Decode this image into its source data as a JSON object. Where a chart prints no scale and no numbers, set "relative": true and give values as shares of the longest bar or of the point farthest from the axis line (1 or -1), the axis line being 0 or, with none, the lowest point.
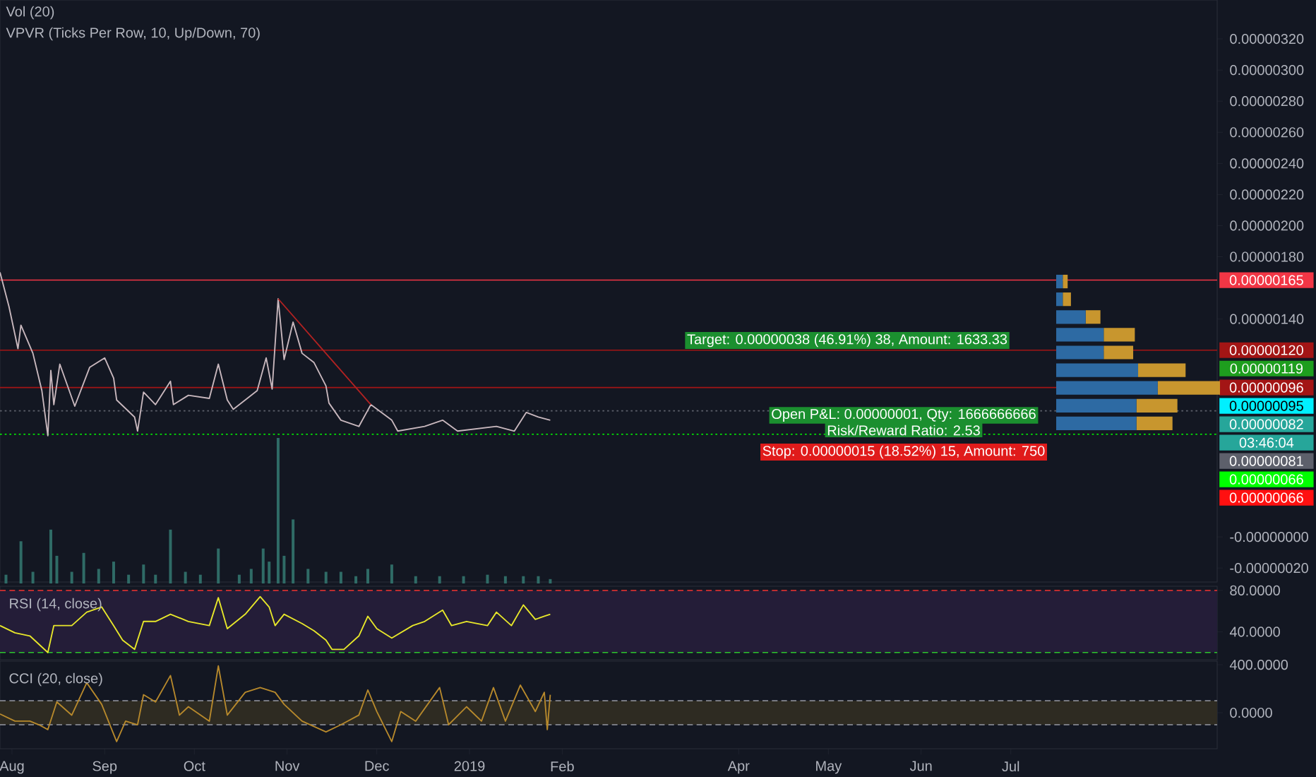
{
  "chart_data": [
    {
      "type": "line",
      "series": [
        {
          "color": "#c9b8be",
          "x": [
            "2018-07-28",
            "2018-07-31",
            "2018-08-03",
            "2018-08-04",
            "2018-08-08",
            "2018-08-11",
            "2018-08-13",
            "2018-08-14",
            "2018-08-15",
            "2018-08-17",
            "2018-08-22",
            "2018-08-27",
            "2018-09-01",
            "2018-09-04",
            "2018-09-05",
            "2018-09-11",
            "2018-09-12",
            "2018-09-14",
            "2018-09-18",
            "2018-09-23",
            "2018-09-24",
            "2018-09-29",
            "2018-10-06",
            "2018-10-09",
            "2018-10-12",
            "2018-10-14",
            "2018-10-18",
            "2018-10-22",
            "2018-10-25",
            "2018-10-27",
            "2018-10-29",
            "2018-10-31",
            "2018-11-03",
            "2018-11-06",
            "2018-11-10",
            "2018-11-14",
            "2018-11-15",
            "2018-11-19",
            "2018-11-25",
            "2018-11-29",
            "2018-12-06",
            "2018-12-08",
            "2018-12-17",
            "2018-12-23",
            "2018-12-28",
            "2019-01-10",
            "2019-01-16",
            "2019-01-20",
            "2019-01-24",
            "2019-01-28"
          ],
          "values": [
            1.7e-06,
            1.48e-06,
            1.21e-06,
            1.36e-06,
            1.18e-06,
            9.4e-07,
            6.5e-07,
            1.07e-06,
            8.5e-07,
            1.11e-06,
            8.4e-07,
            1.09e-06,
            1.15e-06,
            1.02e-06,
            8.8e-07,
            7.7e-07,
            6.8e-07,
            9.3e-07,
            8.5e-07,
            1e-06,
            8.5e-07,
            9.1e-07,
            8.9e-07,
            1.11e-06,
            8.8e-07,
            8.2e-07,
            8.8e-07,
            9.4e-07,
            1.15e-06,
            9.5e-07,
            1.53e-06,
            1.14e-06,
            1.38e-06,
            1.18e-06,
            1.12e-06,
            9.7e-07,
            8.6e-07,
            7.5e-07,
            7.1e-07,
            8.5e-07,
            7.5e-07,
            6.8e-07,
            7.1e-07,
            7.5e-07,
            6.8e-07,
            7.1e-07,
            6.8e-07,
            8e-07,
            7.7e-07,
            7.5e-07
          ]
        },
        {
          "type": "line",
          "color": "#b22222",
          "x": [
            "2018-10-29",
            "2018-11-29"
          ],
          "values": [
            1.53e-06,
            8.5e-07
          ]
        }
      ],
      "xlim": [
        "2018-07-28",
        "2019-09-08"
      ],
      "ylim": [
        -2.9e-07,
        3.45e-06
      ],
      "yticks": [
        {
          "value": -2e-07,
          "label": "-0.00000020"
        },
        {
          "value": 0,
          "label": "-0.00000000"
        },
        {
          "value": 1.4e-06,
          "label": "0.00000140"
        },
        {
          "value": 1.8e-06,
          "label": "0.00000180"
        },
        {
          "value": 2e-06,
          "label": "0.00000200"
        },
        {
          "value": 2.2e-06,
          "label": "0.00000220"
        },
        {
          "value": 2.4e-06,
          "label": "0.00000240"
        },
        {
          "value": 2.6e-06,
          "label": "0.00000260"
        },
        {
          "value": 2.8e-06,
          "label": "0.00000280"
        },
        {
          "value": 3e-06,
          "label": "0.00000300"
        },
        {
          "value": 3.2e-06,
          "label": "0.00000320"
        }
      ],
      "tick_labels": "y",
      "ref_lines": [
        {
          "axis": "y",
          "value": 1.65e-06,
          "label": "0.00000165",
          "color": "#f23645",
          "line_style": "solid"
        },
        {
          "axis": "y",
          "value": 1.2e-06,
          "label": "0.00000120",
          "color": "#a31515",
          "line_style": "solid"
        },
        {
          "axis": "y",
          "value": 9.6e-07,
          "label": "0.00000096",
          "color": "#a31515",
          "line_style": "solid"
        },
        {
          "axis": "y",
          "value": 8.1e-07,
          "color": "#5d606b",
          "line_style": "dotted"
        },
        {
          "axis": "y",
          "value": 6.6e-07,
          "label": "0.00000066",
          "color": "#00ff00",
          "line_style": "dotted"
        }
      ],
      "annotations": [
        "Target: 0.00000038 (46.91%) 38, Amount: 1633.33",
        "Open P&L: 0.00000001, Qty: 1666666666",
        "Risk/Reward Ratio: 2.53",
        "Stop: 0.00000015 (18.52%) 15, Amount: 750",
        "0.00000119",
        "0.00000095",
        "0.00000082",
        "03:46:04",
        "0.00000081",
        "0.00000066",
        "Vol (20)",
        "VPVR (Ticks Per Row, 10, Up/Down, 70)"
      ]
    },
    {
      "type": "bar",
      "relative": true,
      "color": "#2f6b66",
      "tick_labels": false,
      "xlim": [
        "2018-07-28",
        "2019-09-08"
      ],
      "x": [
        "2018-07-30",
        "2018-08-04",
        "2018-08-08",
        "2018-08-14",
        "2018-08-16",
        "2018-08-21",
        "2018-08-25",
        "2018-08-30",
        "2018-09-04",
        "2018-09-09",
        "2018-09-14",
        "2018-09-18",
        "2018-09-23",
        "2018-09-28",
        "2018-10-03",
        "2018-10-09",
        "2018-10-16",
        "2018-10-20",
        "2018-10-24",
        "2018-10-26",
        "2018-10-29",
        "2018-10-31",
        "2018-11-03",
        "2018-11-08",
        "2018-11-14",
        "2018-11-19",
        "2018-11-24",
        "2018-11-28",
        "2018-12-06",
        "2018-12-14",
        "2018-12-22",
        "2018-12-30",
        "2019-01-07",
        "2019-01-13",
        "2019-01-19",
        "2019-01-24",
        "2019-01-28"
      ],
      "values": [
        0.06,
        0.29,
        0.08,
        0.37,
        0.19,
        0.08,
        0.21,
        0.1,
        0.15,
        0.06,
        0.13,
        0.06,
        0.37,
        0.08,
        0.06,
        0.24,
        0.06,
        0.1,
        0.24,
        0.15,
        1,
        0.19,
        0.44,
        0.1,
        0.08,
        0.08,
        0.05,
        0.1,
        0.13,
        0.05,
        0.05,
        0.05,
        0.06,
        0.05,
        0.05,
        0.05,
        0.03
      ]
    },
    {
      "type": "bar",
      "relative": true,
      "orientation": "horizontal",
      "stacked": true,
      "tick_labels": false,
      "categories": [
        null,
        null,
        null,
        null,
        null,
        null,
        null,
        null,
        null
      ],
      "series": [
        {
          "color": "#2d6aa3",
          "values": [
            0.04,
            0.04,
            0.18,
            0.29,
            0.29,
            0.5,
            0.62,
            0.49,
            0.49
          ]
        },
        {
          "color": "#c8962e",
          "values": [
            0.03,
            0.05,
            0.09,
            0.19,
            0.18,
            0.29,
            0.38,
            0.25,
            0.22
          ]
        }
      ]
    },
    {
      "type": "line",
      "title": "RSI (14, close)",
      "color": "#e8e82a",
      "tick_labels": "y",
      "xlim": [
        "2018-07-28",
        "2019-09-08"
      ],
      "ylim": [
        13,
        84
      ],
      "yticks": [
        {
          "value": 40,
          "label": "40.0000"
        },
        {
          "value": 80,
          "label": "80.0000"
        }
      ],
      "bands": [
        {
          "axis": "y",
          "from": 20,
          "to": 80,
          "color": "#241d38"
        }
      ],
      "ref_lines": [
        {
          "axis": "y",
          "value": 80,
          "color": "#d32f2f",
          "line_style": "dashed"
        },
        {
          "axis": "y",
          "value": 20,
          "color": "#2ec72e",
          "line_style": "dashed"
        }
      ],
      "x": [
        "2018-07-28",
        "2018-08-02",
        "2018-08-07",
        "2018-08-13",
        "2018-08-15",
        "2018-08-21",
        "2018-08-26",
        "2018-08-31",
        "2018-09-04",
        "2018-09-07",
        "2018-09-11",
        "2018-09-14",
        "2018-09-18",
        "2018-09-23",
        "2018-09-29",
        "2018-10-06",
        "2018-10-09",
        "2018-10-12",
        "2018-10-18",
        "2018-10-23",
        "2018-10-26",
        "2018-10-28",
        "2018-10-31",
        "2018-11-06",
        "2018-11-10",
        "2018-11-14",
        "2018-11-16",
        "2018-11-20",
        "2018-11-25",
        "2018-11-28",
        "2018-12-01",
        "2018-12-06",
        "2018-12-13",
        "2018-12-17",
        "2018-12-23",
        "2018-12-26",
        "2018-12-31",
        "2019-01-07",
        "2019-01-10",
        "2019-01-15",
        "2019-01-19",
        "2019-01-23",
        "2019-01-26",
        "2019-01-28"
      ],
      "values": [
        46,
        39,
        36,
        20,
        46,
        46,
        59,
        64,
        46,
        32,
        23,
        50,
        50,
        57,
        50,
        46,
        73,
        43,
        57,
        74,
        64,
        46,
        57,
        48,
        41,
        32,
        23,
        23,
        36,
        55,
        43,
        34,
        46,
        50,
        61,
        46,
        50,
        46,
        59,
        46,
        66,
        52,
        55,
        57
      ]
    },
    {
      "type": "line",
      "title": "CCI (20, close)",
      "color": "#b7892c",
      "xlim": [
        "2018-07-28",
        "2019-09-08"
      ],
      "ylim": [
        -300,
        430
      ],
      "xticks": [
        {
          "value": "2018-08-01",
          "label": "Aug"
        },
        {
          "value": "2018-09-01",
          "label": "Sep"
        },
        {
          "value": "2018-10-01",
          "label": "Oct"
        },
        {
          "value": "2018-11-01",
          "label": "Nov"
        },
        {
          "value": "2018-12-01",
          "label": "Dec"
        },
        {
          "value": "2019-01-01",
          "label": "2019"
        },
        {
          "value": "2019-02-01",
          "label": "Feb"
        },
        {
          "value": "2019-04-01",
          "label": "Apr"
        },
        {
          "value": "2019-05-01",
          "label": "May"
        },
        {
          "value": "2019-06-01",
          "label": "Jun"
        },
        {
          "value": "2019-07-01",
          "label": "Jul"
        }
      ],
      "yticks": [
        {
          "value": 0,
          "label": "0.0000"
        },
        {
          "value": 400,
          "label": "400.0000"
        }
      ],
      "bands": [
        {
          "axis": "y",
          "from": -100,
          "to": 100,
          "color": "#2e2b22"
        }
      ],
      "ref_lines": [
        {
          "axis": "y",
          "value": 100,
          "color": "#9598a1",
          "line_style": "dashed"
        },
        {
          "axis": "y",
          "value": -100,
          "color": "#9598a1",
          "line_style": "dashed"
        }
      ],
      "x": [
        "2018-07-28",
        "2018-08-02",
        "2018-08-07",
        "2018-08-10",
        "2018-08-13",
        "2018-08-16",
        "2018-08-21",
        "2018-08-26",
        "2018-08-31",
        "2018-09-05",
        "2018-09-08",
        "2018-09-12",
        "2018-09-14",
        "2018-09-18",
        "2018-09-23",
        "2018-09-26",
        "2018-09-29",
        "2018-10-06",
        "2018-10-09",
        "2018-10-12",
        "2018-10-18",
        "2018-10-23",
        "2018-10-28",
        "2018-10-31",
        "2018-11-06",
        "2018-11-14",
        "2018-11-19",
        "2018-11-25",
        "2018-11-28",
        "2018-12-01",
        "2018-12-06",
        "2018-12-09",
        "2018-12-14",
        "2018-12-22",
        "2018-12-25",
        "2018-12-31",
        "2019-01-05",
        "2019-01-09",
        "2019-01-13",
        "2019-01-18",
        "2019-01-23",
        "2019-01-26",
        "2019-01-27",
        "2019-01-28"
      ],
      "values": [
        -10,
        -70,
        -70,
        -100,
        -140,
        90,
        -20,
        250,
        70,
        -240,
        -70,
        -100,
        150,
        90,
        310,
        -20,
        50,
        -70,
        390,
        -20,
        170,
        210,
        170,
        70,
        -70,
        -160,
        -100,
        -20,
        190,
        10,
        -240,
        10,
        -70,
        210,
        -100,
        50,
        -70,
        210,
        -70,
        230,
        10,
        170,
        -140,
        150
      ]
    }
  ]
}
